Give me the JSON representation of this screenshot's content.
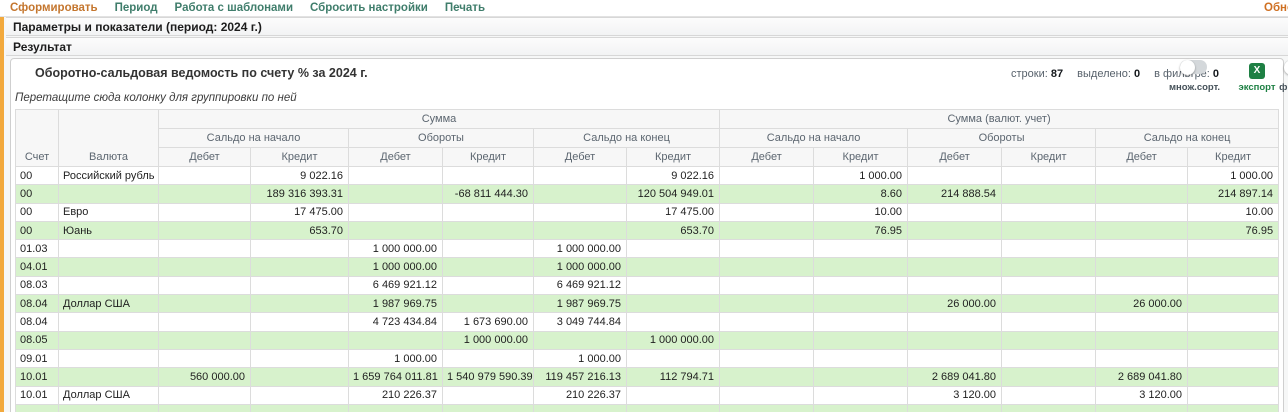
{
  "menu": {
    "items": [
      {
        "label": "Сформировать",
        "active": true
      },
      {
        "label": "Период",
        "active": false
      },
      {
        "label": "Работа с шаблонами",
        "active": false
      },
      {
        "label": "Сбросить настройки",
        "active": false
      },
      {
        "label": "Печать",
        "active": false
      }
    ],
    "right_item": "Обновить"
  },
  "bars": {
    "parameters": "Параметры и показатели (период: 2024 г.)",
    "result": "Результат"
  },
  "report": {
    "title": "Оборотно-сальдовая ведомость по счету % за 2024 г.",
    "stats": [
      {
        "label": "строки:",
        "value": "87"
      },
      {
        "label": "выделено:",
        "value": "0"
      },
      {
        "label": "в фильтре:",
        "value": "0"
      }
    ],
    "controls": {
      "multisort_label": "множ.сорт.",
      "export_label": "экспорт",
      "export_icon": "X",
      "filter_label": "фильтр"
    },
    "drag_hint": "Перетащите сюда колонку для группировки по ней"
  },
  "colors": {
    "left_stripe": "#f2a93d",
    "menu_link": "#3f7d6b",
    "menu_active": "#c4762e",
    "export_green": "#1e8044",
    "row_highlight_green": "#d7f2cc"
  },
  "table": {
    "account_header": "Счет",
    "currency_header": "Валюта",
    "group_sum": "Сумма",
    "group_sum_currency": "Сумма (валют. учет)",
    "subgroups": [
      "Сальдо на начало",
      "Обороты",
      "Сальдо на конец"
    ],
    "debit": "Дебет",
    "credit": "Кредит",
    "rows": [
      {
        "account": "00",
        "currency": "Российский рубль",
        "values": [
          "",
          "9 022.16",
          "",
          "",
          "",
          "9 022.16",
          "",
          "1 000.00",
          "",
          "",
          "",
          "1 000.00"
        ]
      },
      {
        "account": "00",
        "currency": "",
        "values": [
          "",
          "189 316 393.31",
          "",
          "-68 811 444.30",
          "",
          "120 504 949.01",
          "",
          "8.60",
          "214 888.54",
          "",
          "",
          "214 897.14"
        ]
      },
      {
        "account": "00",
        "currency": "Евро",
        "values": [
          "",
          "17 475.00",
          "",
          "",
          "",
          "17 475.00",
          "",
          "10.00",
          "",
          "",
          "",
          "10.00"
        ]
      },
      {
        "account": "00",
        "currency": "Юань",
        "values": [
          "",
          "653.70",
          "",
          "",
          "",
          "653.70",
          "",
          "76.95",
          "",
          "",
          "",
          "76.95"
        ]
      },
      {
        "account": "01.03",
        "currency": "",
        "values": [
          "",
          "",
          "1 000 000.00",
          "",
          "1 000 000.00",
          "",
          "",
          "",
          "",
          "",
          "",
          ""
        ]
      },
      {
        "account": "04.01",
        "currency": "",
        "values": [
          "",
          "",
          "1 000 000.00",
          "",
          "1 000 000.00",
          "",
          "",
          "",
          "",
          "",
          "",
          ""
        ]
      },
      {
        "account": "08.03",
        "currency": "",
        "values": [
          "",
          "",
          "6 469 921.12",
          "",
          "6 469 921.12",
          "",
          "",
          "",
          "",
          "",
          "",
          ""
        ]
      },
      {
        "account": "08.04",
        "currency": "Доллар США",
        "values": [
          "",
          "",
          "1 987 969.75",
          "",
          "1 987 969.75",
          "",
          "",
          "",
          "26 000.00",
          "",
          "26 000.00",
          ""
        ]
      },
      {
        "account": "08.04",
        "currency": "",
        "values": [
          "",
          "",
          "4 723 434.84",
          "1 673 690.00",
          "3 049 744.84",
          "",
          "",
          "",
          "",
          "",
          "",
          ""
        ]
      },
      {
        "account": "08.05",
        "currency": "",
        "values": [
          "",
          "",
          "",
          "1 000 000.00",
          "",
          "1 000 000.00",
          "",
          "",
          "",
          "",
          "",
          ""
        ]
      },
      {
        "account": "09.01",
        "currency": "",
        "values": [
          "",
          "",
          "1 000.00",
          "",
          "1 000.00",
          "",
          "",
          "",
          "",
          "",
          "",
          ""
        ]
      },
      {
        "account": "10.01",
        "currency": "",
        "values": [
          "560 000.00",
          "",
          "1 659 764 011.81",
          "1 540 979 590.39",
          "119 457 216.13",
          "112 794.71",
          "",
          "",
          "2 689 041.80",
          "",
          "2 689 041.80",
          ""
        ]
      },
      {
        "account": "10.01",
        "currency": "Доллар США",
        "values": [
          "",
          "",
          "210 226.37",
          "",
          "210 226.37",
          "",
          "",
          "",
          "3 120.00",
          "",
          "3 120.00",
          ""
        ]
      },
      {
        "account": "",
        "currency": "",
        "values": [
          "",
          "",
          "",
          "",
          "",
          "",
          "",
          "",
          "",
          "",
          "",
          ""
        ]
      }
    ]
  }
}
